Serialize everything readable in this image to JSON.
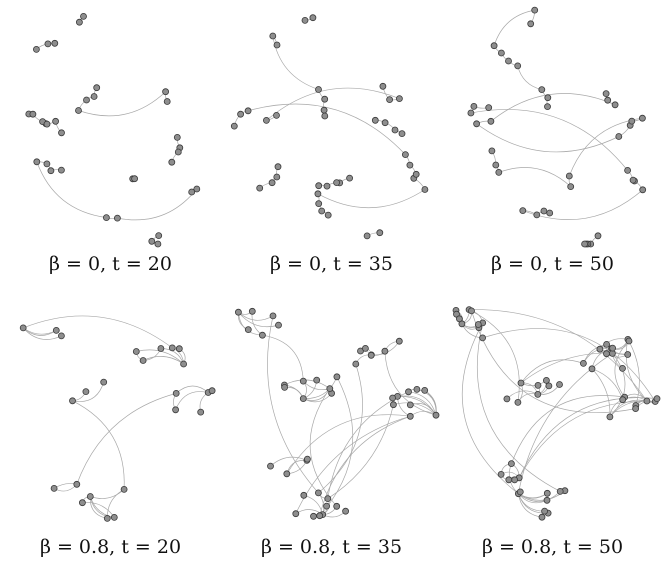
{
  "panels": [
    {
      "id": "p1",
      "caption": "β = 0, t = 20",
      "beta": 0,
      "t": 20
    },
    {
      "id": "p2",
      "caption": "β = 0, t = 35",
      "beta": 0,
      "t": 35
    },
    {
      "id": "p3",
      "caption": "β = 0, t = 50",
      "beta": 0,
      "t": 50
    },
    {
      "id": "p4",
      "caption": "β = 0.8, t = 20",
      "beta": 0.8,
      "t": 20
    },
    {
      "id": "p5",
      "caption": "β = 0.8, t = 35",
      "beta": 0.8,
      "t": 35
    },
    {
      "id": "p6",
      "caption": "β = 0.8, t = 50",
      "beta": 0.8,
      "t": 50
    }
  ],
  "colors": {
    "node_fill": "#8e8e8e",
    "node_stroke": "#3a3a3a",
    "edge": "#a8a8a8"
  }
}
